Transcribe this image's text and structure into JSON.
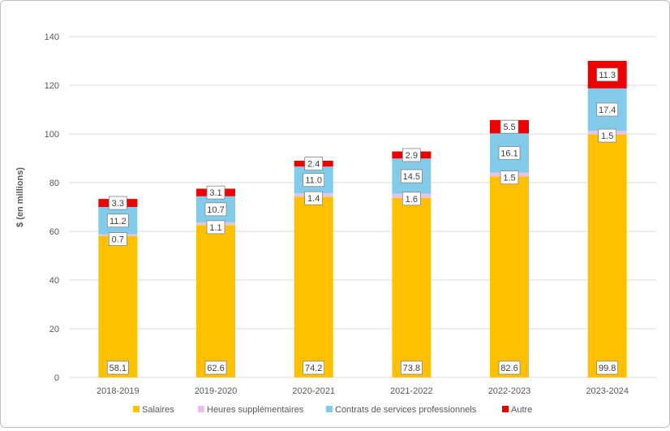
{
  "chart_data": {
    "type": "bar",
    "stacked": true,
    "title": "",
    "xlabel": "",
    "ylabel": "$ (en millions)",
    "ylim": [
      0,
      140
    ],
    "yticks": [
      0,
      20,
      40,
      60,
      80,
      100,
      120,
      140
    ],
    "grid": true,
    "legend_position": "bottom",
    "categories": [
      "2018-2019",
      "2019-2020",
      "2020-2021",
      "2021-2022",
      "2022-2023",
      "2023-2024"
    ],
    "series": [
      {
        "name": "Salaires",
        "color": "#FFC000",
        "values": [
          58.1,
          62.6,
          74.2,
          73.8,
          82.6,
          99.8
        ],
        "labels": [
          "58.1",
          "62.6",
          "74.2",
          "73.8",
          "82.6",
          "99.8"
        ]
      },
      {
        "name": "Heures supplémentaires",
        "color": "#E6C3EC",
        "values": [
          0.7,
          1.1,
          1.4,
          1.6,
          1.5,
          1.5
        ],
        "labels": [
          "0.7",
          "1.1",
          "1.4",
          "1.6",
          "1.5",
          "1.5"
        ]
      },
      {
        "name": "Contrats de services professionnels",
        "color": "#83CBEB",
        "values": [
          11.2,
          10.7,
          11.0,
          14.5,
          16.1,
          17.4
        ],
        "labels": [
          "11.2",
          "10.7",
          "11.0",
          "14.5",
          "16.1",
          "17.4"
        ]
      },
      {
        "name": "Autre",
        "color": "#EE0000",
        "values": [
          3.3,
          3.1,
          2.4,
          2.9,
          5.5,
          11.3
        ],
        "labels": [
          "3.3",
          "3.1",
          "2.4",
          "2.9",
          "5.5",
          "11.3"
        ]
      }
    ]
  }
}
